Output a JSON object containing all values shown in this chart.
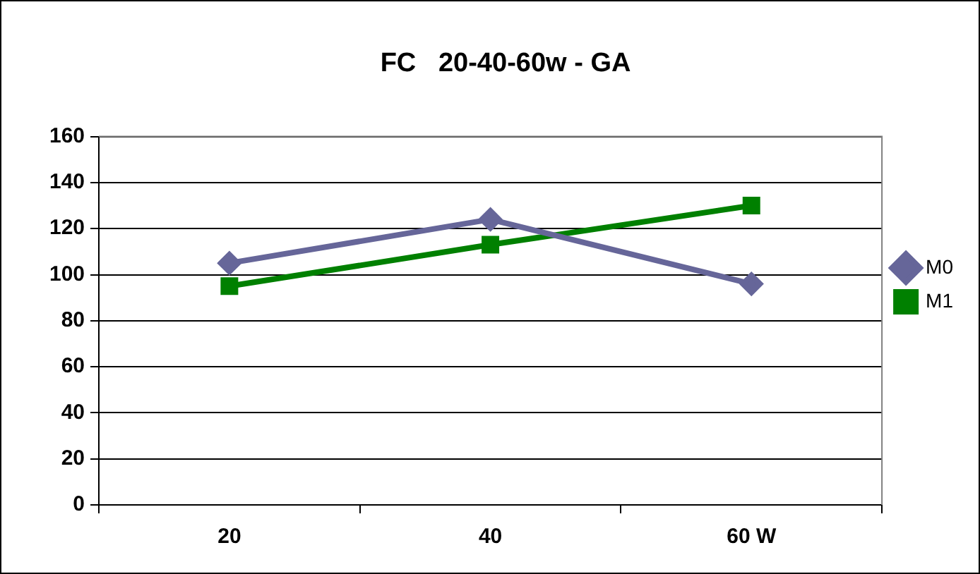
{
  "chart_data": {
    "type": "line",
    "title": "FC   20-40-60w - GA",
    "categories": [
      "20",
      "40",
      "60 W"
    ],
    "series": [
      {
        "name": "M0",
        "color": "#666699",
        "values": [
          105,
          124,
          96
        ],
        "marker": "diamond"
      },
      {
        "name": "M1",
        "color": "#008000",
        "values": [
          95,
          113,
          130
        ],
        "marker": "square"
      }
    ],
    "ylim": [
      0,
      160
    ],
    "yticks": [
      0,
      20,
      40,
      60,
      80,
      100,
      120,
      140,
      160
    ],
    "grid": "y",
    "legend": "right"
  }
}
